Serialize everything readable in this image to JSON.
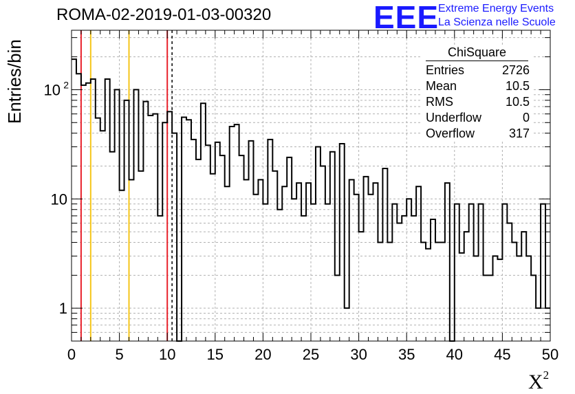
{
  "title": "ROMA-02-2019-01-03-00320",
  "logo": {
    "mark": "EEE",
    "line1": "Extreme Energy Events",
    "line2": "La Scienza nelle Scuole",
    "color": "#1a1aff"
  },
  "stats": {
    "title": "ChiSquare",
    "rows": [
      {
        "label": "Entries",
        "value": "2726"
      },
      {
        "label": "Mean",
        "value": "10.5"
      },
      {
        "label": "RMS",
        "value": "10.5"
      },
      {
        "label": "Underflow",
        "value": "0"
      },
      {
        "label": "Overflow",
        "value": "317"
      }
    ]
  },
  "chart_data": {
    "type": "histogram",
    "ylabel": "Entries/bin",
    "xlabel": "X",
    "xlabel_sup": "2",
    "xlim": [
      0,
      50
    ],
    "ylim": [
      0.5,
      350
    ],
    "y_scale": "log",
    "grid": true,
    "bin_width": 0.5,
    "x_ticks": [
      "0",
      "5",
      "10",
      "15",
      "20",
      "25",
      "30",
      "35",
      "40",
      "45",
      "50"
    ],
    "y_ticks": [
      {
        "value": 1,
        "label": "1"
      },
      {
        "value": 10,
        "label": "10"
      },
      {
        "value": 100,
        "label": "10",
        "sup": "2"
      }
    ],
    "values": [
      190,
      140,
      110,
      115,
      125,
      55,
      42,
      125,
      27,
      100,
      12,
      80,
      15,
      100,
      18,
      78,
      58,
      60,
      7,
      50,
      63,
      40,
      0,
      56,
      53,
      35,
      23,
      75,
      31,
      17,
      33,
      25,
      13,
      46,
      48,
      25,
      15,
      34,
      11,
      15,
      9,
      35,
      18,
      8,
      13,
      24,
      10,
      14,
      7,
      14,
      9,
      30,
      20,
      9,
      27,
      2,
      32,
      1,
      15,
      11,
      5,
      16,
      11,
      14,
      4,
      19,
      4,
      9,
      6,
      7,
      10,
      7,
      13,
      4,
      3.5,
      6.5,
      4,
      4,
      14,
      0,
      9,
      3.2,
      5,
      9,
      3,
      9,
      2,
      2,
      3,
      2.8,
      9,
      6,
      4,
      3,
      5,
      3,
      2,
      1,
      9,
      1
    ],
    "vlines": [
      {
        "x": 1,
        "color": "#e8202a",
        "style": "solid"
      },
      {
        "x": 2,
        "color": "#f5c518",
        "style": "solid"
      },
      {
        "x": 6,
        "color": "#f5c518",
        "style": "solid"
      },
      {
        "x": 10,
        "color": "#e8202a",
        "style": "solid"
      },
      {
        "x": 10.5,
        "color": "#000000",
        "style": "dashed"
      }
    ]
  }
}
